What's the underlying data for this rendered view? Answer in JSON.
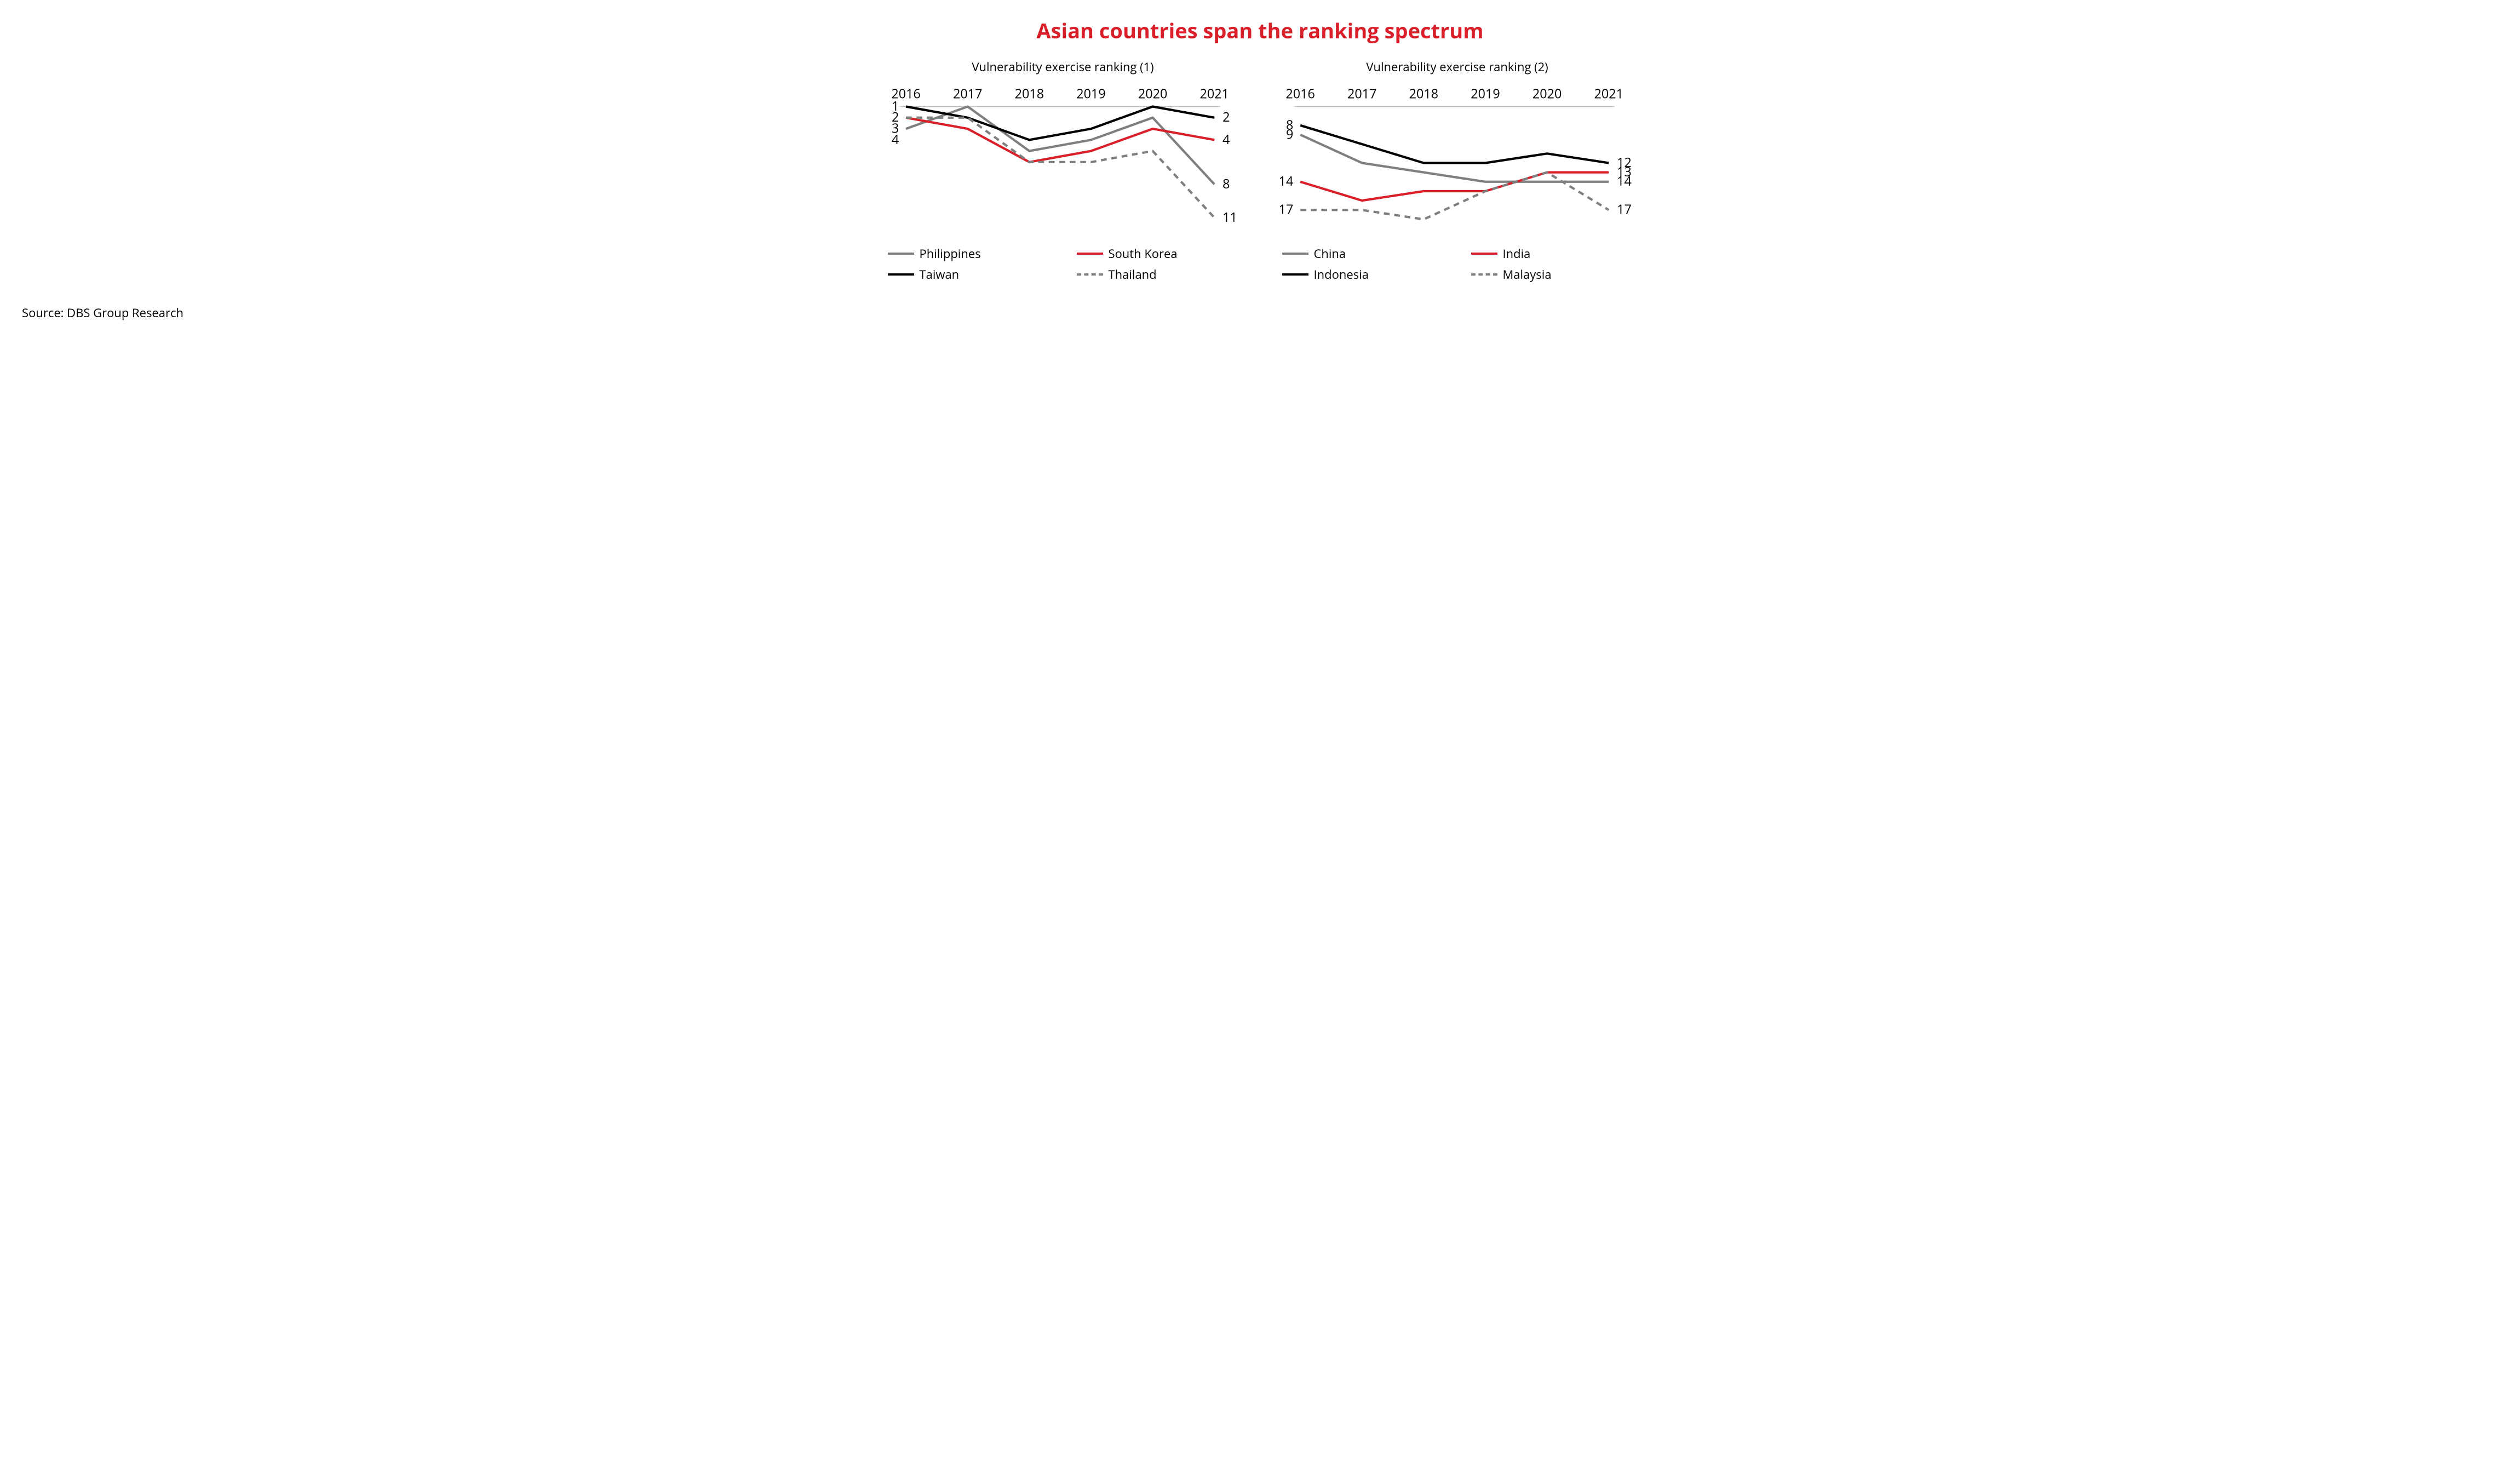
{
  "title": "Asian countries span the ranking spectrum",
  "title_color": "#d91f2a",
  "title_fontsize": 38,
  "source": "Source: DBS Group Research",
  "source_fontsize": 22,
  "text_color": "#000000",
  "background_color": "#ffffff",
  "axis_fontsize": 22,
  "chart_title_fontsize": 22,
  "legend_fontsize": 22,
  "line_width": 4,
  "dash_pattern": "10,8",
  "chart1": {
    "title": "Vulnerability exercise ranking (1)",
    "x_categories": [
      "2016",
      "2017",
      "2018",
      "2019",
      "2020",
      "2021"
    ],
    "y_ticks_left": [
      1,
      2,
      3,
      4
    ],
    "y_ticks_right": [
      2,
      4,
      8,
      11
    ],
    "ylim": [
      1,
      12
    ],
    "series": [
      {
        "name": "Philippines",
        "color": "#7f7f7f",
        "dashed": false,
        "values": [
          3,
          1,
          5,
          4,
          2,
          8
        ]
      },
      {
        "name": "South Korea",
        "color": "#d91f2a",
        "dashed": false,
        "values": [
          2,
          3,
          6,
          5,
          3,
          4
        ]
      },
      {
        "name": "Taiwan",
        "color": "#000000",
        "dashed": false,
        "values": [
          1,
          2,
          4,
          3,
          1,
          2
        ]
      },
      {
        "name": "Thailand",
        "color": "#7f7f7f",
        "dashed": true,
        "values": [
          2,
          2,
          6,
          6,
          5,
          11
        ]
      }
    ],
    "legend_order": [
      "Philippines",
      "South Korea",
      "Taiwan",
      "Thailand"
    ]
  },
  "chart2": {
    "title": "Vulnerability exercise ranking (2)",
    "x_categories": [
      "2016",
      "2017",
      "2018",
      "2019",
      "2020",
      "2021"
    ],
    "y_ticks_left": [
      8,
      9,
      14,
      17
    ],
    "y_ticks_right": [
      12,
      13,
      14,
      17
    ],
    "ylim": [
      6,
      19
    ],
    "series": [
      {
        "name": "China",
        "color": "#7f7f7f",
        "dashed": false,
        "values": [
          9,
          12,
          13,
          14,
          14,
          14
        ]
      },
      {
        "name": "India",
        "color": "#d91f2a",
        "dashed": false,
        "values": [
          14,
          16,
          15,
          15,
          13,
          13
        ]
      },
      {
        "name": "Indonesia",
        "color": "#000000",
        "dashed": false,
        "values": [
          8,
          10,
          12,
          12,
          11,
          12
        ]
      },
      {
        "name": "Malaysia",
        "color": "#7f7f7f",
        "dashed": true,
        "values": [
          17,
          17,
          18,
          15,
          13,
          17
        ]
      }
    ],
    "legend_order": [
      "China",
      "India",
      "Indonesia",
      "Malaysia"
    ]
  }
}
